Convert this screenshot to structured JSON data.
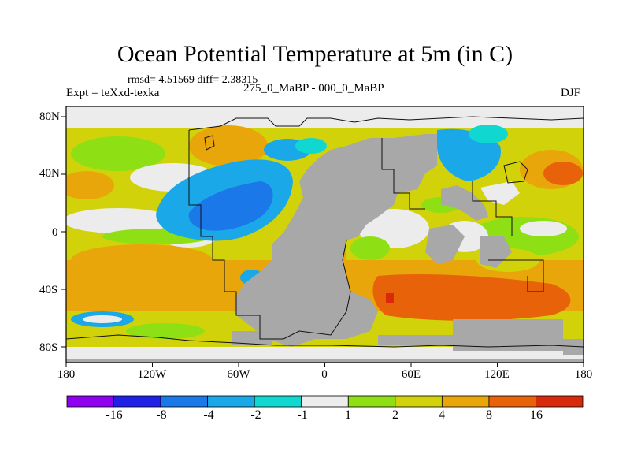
{
  "title": "Ocean Potential Temperature at 5m (in C)",
  "stats": "rmsd= 4.51569 diff= 2.38315",
  "experiment": "Expt = teXxd-texka",
  "period": "275_0_MaBP - 000_0_MaBP",
  "season": "DJF",
  "y_ticks": [
    "80N",
    "40N",
    "0",
    "40S",
    "80S"
  ],
  "x_ticks": [
    "180",
    "120W",
    "60W",
    "0",
    "60E",
    "120E",
    "180"
  ],
  "colorbar": {
    "labels": [
      "-16",
      "-8",
      "-4",
      "-2",
      "-1",
      "1",
      "2",
      "4",
      "8",
      "16"
    ],
    "colors": [
      "#8f00f0",
      "#2020e8",
      "#1a78e8",
      "#1aa8e8",
      "#10d8d0",
      "#ececec",
      "#8ee014",
      "#d2d20a",
      "#e8a60a",
      "#e8620a",
      "#d82a0a"
    ]
  },
  "palette": {
    "land": "#a8a8a8",
    "neutral": "#ececec",
    "cyan": "#10d8d0",
    "lightblue": "#1aa8e8",
    "blue": "#1a78e8",
    "green": "#8ee014",
    "yellow": "#d2d20a",
    "orange": "#e8a60a",
    "darkorange": "#e8620a",
    "red": "#d82a0a"
  }
}
